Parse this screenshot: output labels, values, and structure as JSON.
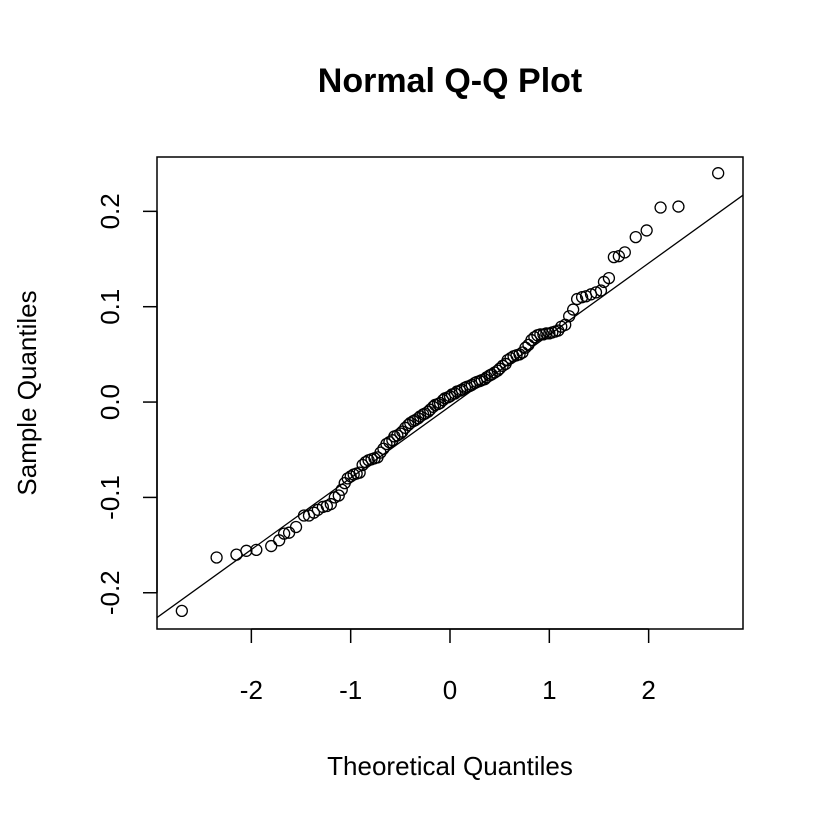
{
  "chart_data": {
    "type": "scatter",
    "title": "Normal Q-Q Plot",
    "xlabel": "Theoretical Quantiles",
    "ylabel": "Sample Quantiles",
    "xlim": [
      -2.95,
      2.95
    ],
    "ylim": [
      -0.238,
      0.257
    ],
    "x_ticks": [
      -2,
      -1,
      0,
      1,
      2
    ],
    "x_tick_labels": [
      "-2",
      "-1",
      "0",
      "1",
      "2"
    ],
    "y_ticks": [
      -0.2,
      -0.1,
      0.0,
      0.1,
      0.2
    ],
    "y_tick_labels": [
      "-0.2",
      "-0.1",
      "0.0",
      "0.1",
      "0.2"
    ],
    "grid": false,
    "legend": "none",
    "reference_line": {
      "x": [
        -2.95,
        2.95
      ],
      "y": [
        -0.226,
        0.217
      ]
    },
    "series": [
      {
        "marker": "open-circle",
        "points": [
          [
            -2.7,
            -0.219
          ],
          [
            -2.35,
            -0.163
          ],
          [
            -2.15,
            -0.16
          ],
          [
            -2.05,
            -0.156
          ],
          [
            -1.95,
            -0.155
          ],
          [
            -1.8,
            -0.151
          ],
          [
            -1.72,
            -0.145
          ],
          [
            -1.67,
            -0.138
          ],
          [
            -1.62,
            -0.137
          ],
          [
            -1.55,
            -0.131
          ],
          [
            -1.47,
            -0.119
          ],
          [
            -1.42,
            -0.119
          ],
          [
            -1.37,
            -0.116
          ],
          [
            -1.33,
            -0.113
          ],
          [
            -1.28,
            -0.11
          ],
          [
            -1.24,
            -0.109
          ],
          [
            -1.2,
            -0.107
          ],
          [
            -1.16,
            -0.1
          ],
          [
            -1.12,
            -0.098
          ],
          [
            -1.09,
            -0.092
          ],
          [
            -1.06,
            -0.085
          ],
          [
            -1.03,
            -0.08
          ],
          [
            -1.0,
            -0.078
          ],
          [
            -0.97,
            -0.076
          ],
          [
            -0.94,
            -0.075
          ],
          [
            -0.91,
            -0.074
          ],
          [
            -0.88,
            -0.066
          ],
          [
            -0.85,
            -0.063
          ],
          [
            -0.82,
            -0.061
          ],
          [
            -0.79,
            -0.06
          ],
          [
            -0.76,
            -0.059
          ],
          [
            -0.73,
            -0.058
          ],
          [
            -0.7,
            -0.053
          ],
          [
            -0.67,
            -0.049
          ],
          [
            -0.64,
            -0.044
          ],
          [
            -0.61,
            -0.042
          ],
          [
            -0.58,
            -0.04
          ],
          [
            -0.56,
            -0.036
          ],
          [
            -0.53,
            -0.035
          ],
          [
            -0.5,
            -0.033
          ],
          [
            -0.48,
            -0.031
          ],
          [
            -0.45,
            -0.027
          ],
          [
            -0.42,
            -0.024
          ],
          [
            -0.4,
            -0.022
          ],
          [
            -0.37,
            -0.02
          ],
          [
            -0.35,
            -0.019
          ],
          [
            -0.32,
            -0.017
          ],
          [
            -0.3,
            -0.015
          ],
          [
            -0.27,
            -0.013
          ],
          [
            -0.25,
            -0.012
          ],
          [
            -0.22,
            -0.01
          ],
          [
            -0.2,
            -0.008
          ],
          [
            -0.17,
            -0.005
          ],
          [
            -0.15,
            -0.003
          ],
          [
            -0.12,
            -0.002
          ],
          [
            -0.1,
            -0.001
          ],
          [
            -0.07,
            0.002
          ],
          [
            -0.05,
            0.004
          ],
          [
            -0.02,
            0.005
          ],
          [
            0.0,
            0.006
          ],
          [
            0.02,
            0.008
          ],
          [
            0.05,
            0.009
          ],
          [
            0.07,
            0.011
          ],
          [
            0.1,
            0.012
          ],
          [
            0.12,
            0.013
          ],
          [
            0.15,
            0.015
          ],
          [
            0.17,
            0.016
          ],
          [
            0.2,
            0.017
          ],
          [
            0.22,
            0.018
          ],
          [
            0.25,
            0.02
          ],
          [
            0.27,
            0.021
          ],
          [
            0.3,
            0.022
          ],
          [
            0.32,
            0.023
          ],
          [
            0.35,
            0.024
          ],
          [
            0.37,
            0.026
          ],
          [
            0.4,
            0.028
          ],
          [
            0.42,
            0.029
          ],
          [
            0.45,
            0.031
          ],
          [
            0.48,
            0.033
          ],
          [
            0.5,
            0.035
          ],
          [
            0.53,
            0.038
          ],
          [
            0.56,
            0.04
          ],
          [
            0.58,
            0.044
          ],
          [
            0.61,
            0.046
          ],
          [
            0.64,
            0.048
          ],
          [
            0.67,
            0.049
          ],
          [
            0.7,
            0.05
          ],
          [
            0.73,
            0.052
          ],
          [
            0.76,
            0.057
          ],
          [
            0.79,
            0.06
          ],
          [
            0.82,
            0.065
          ],
          [
            0.85,
            0.068
          ],
          [
            0.88,
            0.07
          ],
          [
            0.91,
            0.071
          ],
          [
            0.94,
            0.071
          ],
          [
            0.97,
            0.072
          ],
          [
            1.0,
            0.072
          ],
          [
            1.03,
            0.073
          ],
          [
            1.06,
            0.074
          ],
          [
            1.09,
            0.075
          ],
          [
            1.12,
            0.079
          ],
          [
            1.16,
            0.081
          ],
          [
            1.2,
            0.09
          ],
          [
            1.24,
            0.097
          ],
          [
            1.28,
            0.108
          ],
          [
            1.33,
            0.11
          ],
          [
            1.37,
            0.111
          ],
          [
            1.42,
            0.113
          ],
          [
            1.47,
            0.115
          ],
          [
            1.52,
            0.117
          ],
          [
            1.55,
            0.126
          ],
          [
            1.6,
            0.13
          ],
          [
            1.65,
            0.152
          ],
          [
            1.7,
            0.153
          ],
          [
            1.76,
            0.157
          ],
          [
            1.87,
            0.173
          ],
          [
            1.98,
            0.18
          ],
          [
            2.12,
            0.204
          ],
          [
            2.3,
            0.205
          ],
          [
            2.7,
            0.24
          ]
        ]
      }
    ]
  }
}
